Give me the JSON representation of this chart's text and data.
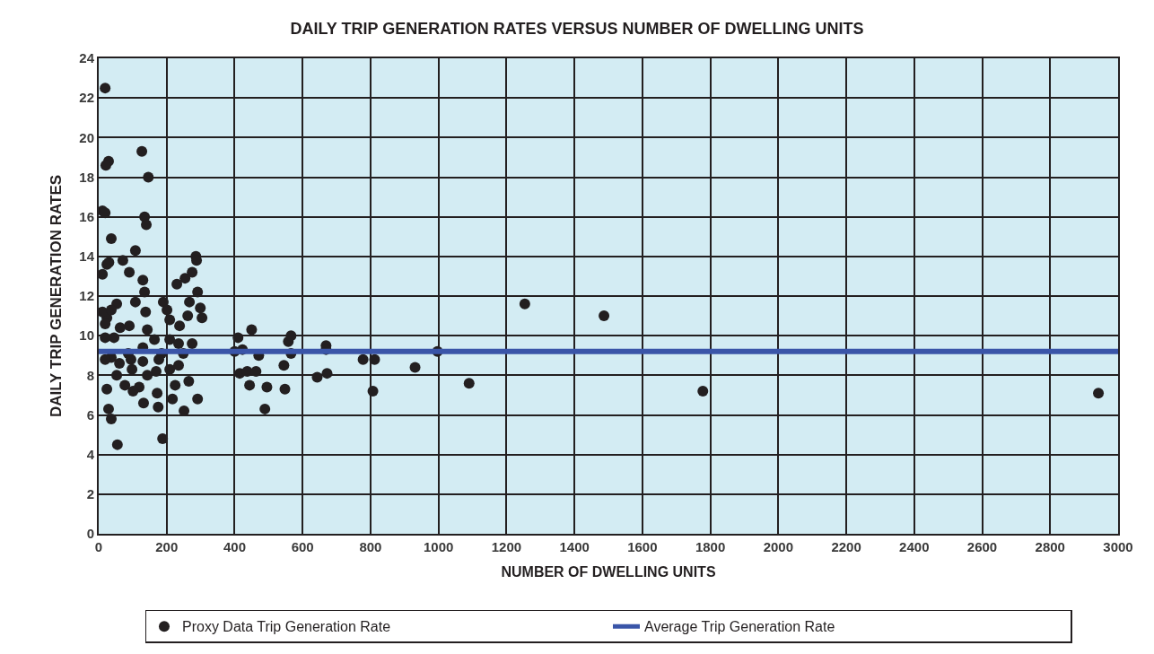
{
  "chart_data": {
    "type": "scatter",
    "title": "DAILY TRIP GENERATION RATES VERSUS NUMBER OF DWELLING UNITS",
    "xlabel": "NUMBER OF DWELLING UNITS",
    "ylabel": "DAILY TRIP GENERATION RATES",
    "xlim": [
      0,
      3000
    ],
    "xticks": [
      0,
      200,
      400,
      600,
      800,
      1000,
      1200,
      1400,
      1600,
      1800,
      2000,
      2200,
      2400,
      2600,
      2800,
      3000
    ],
    "ylim": [
      0,
      24
    ],
    "yticks": [
      0,
      2,
      4,
      6,
      8,
      10,
      12,
      14,
      16,
      18,
      20,
      22,
      24
    ],
    "grid": true,
    "legend": "bottom",
    "series": [
      {
        "name": "Proxy Data Trip Generation Rate",
        "marker": "circle",
        "color": "#231f20",
        "x": [
          19,
          29,
          21,
          127,
          146,
          11,
          19,
          135,
          140,
          37,
          108,
          24,
          30,
          71,
          11,
          90,
          130,
          286,
          288,
          275,
          254,
          230,
          291,
          135,
          108,
          53,
          190,
          267,
          299,
          201,
          138,
          262,
          304,
          209,
          24,
          11,
          37,
          19,
          90,
          238,
          143,
          63,
          164,
          209,
          275,
          235,
          19,
          45,
          130,
          185,
          249,
          37,
          19,
          87,
          95,
          61,
          177,
          130,
          209,
          169,
          235,
          98,
          53,
          143,
          265,
          225,
          119,
          77,
          24,
          101,
          172,
          291,
          217,
          132,
          175,
          251,
          29,
          37,
          188,
          55,
          410,
          450,
          400,
          423,
          415,
          437,
          444,
          463,
          471,
          495,
          489,
          545,
          548,
          558,
          566,
          669,
          669,
          566,
          778,
          812,
          931,
          997,
          672,
          643,
          807,
          1090,
          1254,
          1487,
          1778,
          2942
        ],
        "values": [
          22.5,
          18.8,
          18.6,
          19.3,
          18.0,
          16.3,
          16.2,
          16.0,
          15.6,
          14.9,
          14.3,
          13.6,
          13.7,
          13.8,
          13.1,
          13.2,
          12.8,
          14.0,
          13.8,
          13.2,
          12.9,
          12.6,
          12.2,
          12.2,
          11.7,
          11.6,
          11.7,
          11.7,
          11.4,
          11.3,
          11.2,
          11.0,
          10.9,
          10.8,
          10.9,
          11.2,
          11.3,
          10.6,
          10.5,
          10.5,
          10.3,
          10.4,
          9.8,
          9.8,
          9.6,
          9.6,
          9.9,
          9.9,
          9.4,
          9.1,
          9.1,
          8.9,
          8.8,
          9.1,
          8.8,
          8.6,
          8.8,
          8.7,
          8.3,
          8.2,
          8.5,
          8.3,
          8.0,
          8.0,
          7.7,
          7.5,
          7.4,
          7.5,
          7.3,
          7.2,
          7.1,
          6.8,
          6.8,
          6.6,
          6.4,
          6.2,
          6.3,
          5.8,
          4.8,
          4.5,
          9.9,
          10.3,
          9.2,
          9.3,
          8.1,
          8.2,
          7.5,
          8.2,
          9.0,
          7.4,
          6.3,
          8.5,
          7.3,
          9.7,
          10.0,
          9.5,
          9.3,
          9.1,
          8.8,
          8.8,
          8.4,
          9.2,
          8.1,
          7.9,
          7.2,
          7.6,
          11.6,
          11.0,
          7.2,
          7.1
        ]
      },
      {
        "name": "Average Trip Generation Rate",
        "type": "line",
        "marker": "none",
        "color": "#3a55a8",
        "x": [
          0,
          3000
        ],
        "values": [
          9.2,
          9.2
        ]
      }
    ]
  }
}
